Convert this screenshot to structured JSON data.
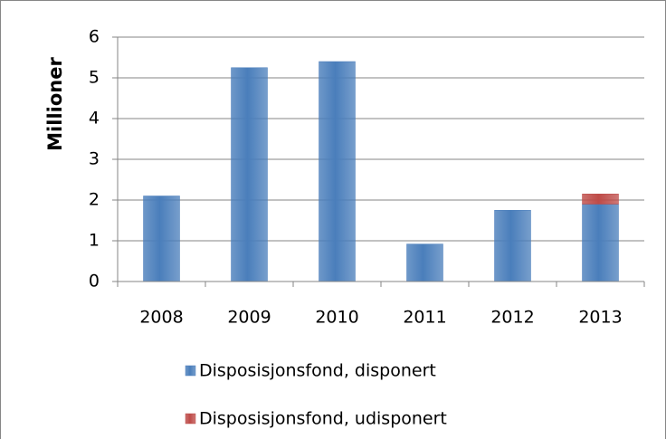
{
  "chart_data": {
    "type": "bar",
    "stacked": true,
    "y_label": "Millioner",
    "categories": [
      "2008",
      "2009",
      "2010",
      "2011",
      "2012",
      "2013"
    ],
    "series": [
      {
        "name": "Disposisjonsfond, disponert",
        "color": "#4a7ebb",
        "values": [
          2.1,
          5.25,
          5.4,
          0.92,
          1.75,
          1.9
        ]
      },
      {
        "name": "Disposisjonsfond, udisponert",
        "color": "#be4b48",
        "values": [
          0,
          0,
          0,
          0,
          0,
          0.25
        ]
      }
    ],
    "ylim": [
      0,
      6
    ],
    "yticks": [
      0,
      1,
      2,
      3,
      4,
      5,
      6
    ],
    "grid": true,
    "legend": "bottom"
  }
}
